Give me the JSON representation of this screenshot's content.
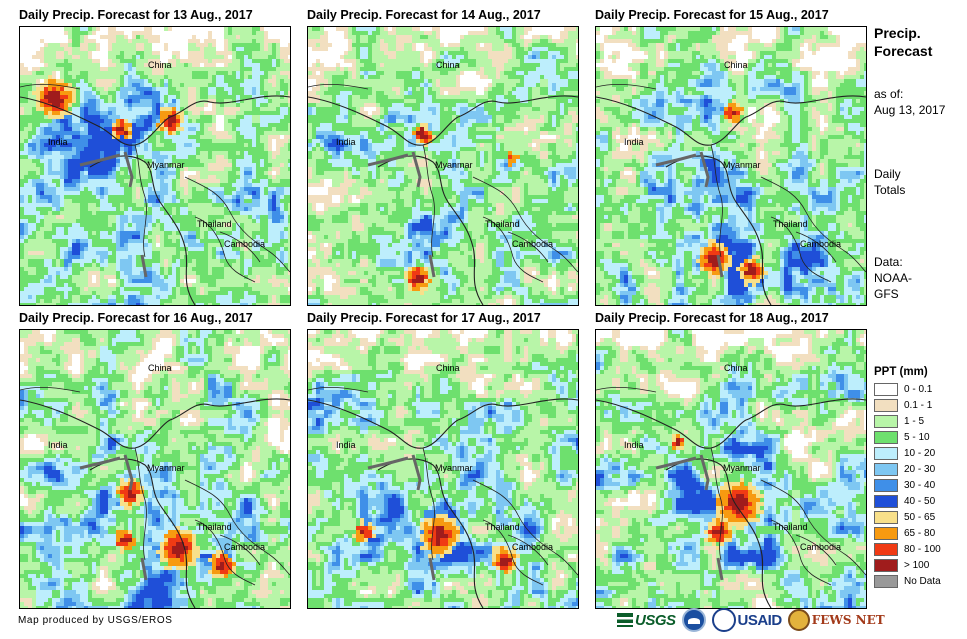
{
  "panels": [
    {
      "title": "Daily Precip. Forecast for 13 Aug., 2017"
    },
    {
      "title": "Daily Precip. Forecast for 14 Aug., 2017"
    },
    {
      "title": "Daily Precip. Forecast for 15 Aug., 2017"
    },
    {
      "title": "Daily Precip. Forecast for 16 Aug., 2017"
    },
    {
      "title": "Daily Precip. Forecast for 17 Aug., 2017"
    },
    {
      "title": "Daily Precip. Forecast for 18 Aug., 2017"
    }
  ],
  "map_labels": {
    "china": "China",
    "india": "India",
    "myanmar": "Myanmar",
    "thailand": "Thailand",
    "cambodia": "Cambodia"
  },
  "side": {
    "title_line1": "Precip.",
    "title_line2": "Forecast",
    "asof_label": "as of:",
    "asof_date": "Aug 13, 2017",
    "totals_line1": "Daily",
    "totals_line2": "Totals",
    "data_label": "Data:",
    "data_line1": "NOAA-",
    "data_line2": "GFS"
  },
  "legend": {
    "title": "PPT (mm)",
    "items": [
      {
        "label": "0 - 0.1",
        "color": "#ffffff"
      },
      {
        "label": "0.1 - 1",
        "color": "#f2dfc0"
      },
      {
        "label": "1 - 5",
        "color": "#b8f5a8"
      },
      {
        "label": "5 - 10",
        "color": "#6ee06e"
      },
      {
        "label": "10 - 20",
        "color": "#bdeefc"
      },
      {
        "label": "20 - 30",
        "color": "#7ec7f2"
      },
      {
        "label": "30 - 40",
        "color": "#3f8fe8"
      },
      {
        "label": "40 - 50",
        "color": "#1f4fd8"
      },
      {
        "label": "50 - 65",
        "color": "#f8e08a"
      },
      {
        "label": "65 - 80",
        "color": "#f79a10"
      },
      {
        "label": "80 - 100",
        "color": "#f03a14"
      },
      {
        "label": "> 100",
        "color": "#a01c1c"
      },
      {
        "label": "No Data",
        "color": "#999999"
      }
    ]
  },
  "credit": "Map produced by USGS/EROS",
  "logos": {
    "usgs": "USGS",
    "usaid": "USAID",
    "fews": "FEWS NET"
  }
}
